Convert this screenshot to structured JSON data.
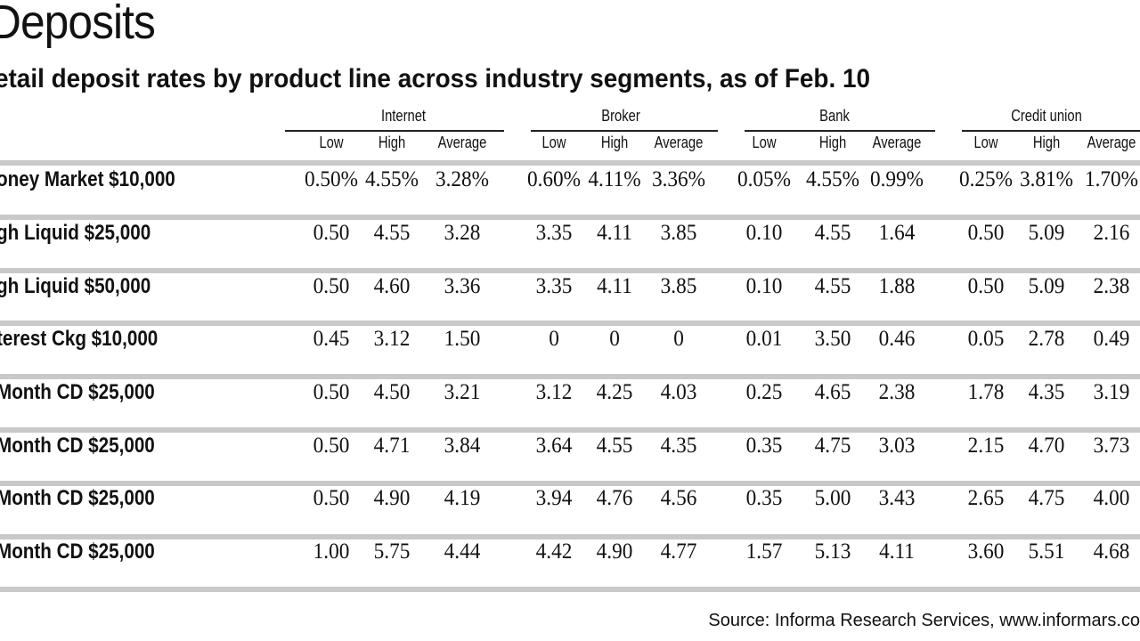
{
  "chart_data": {
    "type": "table",
    "title": "Deposits",
    "subtitle": "etail deposit rates by product line across industry segments, as of Feb. 10",
    "groups": [
      "Internet",
      "Broker",
      "Bank",
      "Credit union"
    ],
    "subheaders": [
      "Low",
      "High",
      "Average"
    ],
    "rows": [
      {
        "label": "oney Market $10,000",
        "values": [
          "0.50%",
          "4.55%",
          "3.28%",
          "0.60%",
          "4.11%",
          "3.36%",
          "0.05%",
          "4.55%",
          "0.99%",
          "0.25%",
          "3.81%",
          "1.70%"
        ]
      },
      {
        "label": "gh Liquid $25,000",
        "values": [
          "0.50",
          "4.55",
          "3.28",
          "3.35",
          "4.11",
          "3.85",
          "0.10",
          "4.55",
          "1.64",
          "0.50",
          "5.09",
          "2.16"
        ]
      },
      {
        "label": "gh Liquid $50,000",
        "values": [
          "0.50",
          "4.60",
          "3.36",
          "3.35",
          "4.11",
          "3.85",
          "0.10",
          "4.55",
          "1.88",
          "0.50",
          "5.09",
          "2.38"
        ]
      },
      {
        "label": "terest Ckg $10,000",
        "values": [
          "0.45",
          "3.12",
          "1.50",
          "0",
          "0",
          "0",
          "0.01",
          "3.50",
          "0.46",
          "0.05",
          "2.78",
          "0.49"
        ]
      },
      {
        "label": "Month CD $25,000",
        "values": [
          "0.50",
          "4.50",
          "3.21",
          "3.12",
          "4.25",
          "4.03",
          "0.25",
          "4.65",
          "2.38",
          "1.78",
          "4.35",
          "3.19"
        ]
      },
      {
        "label": "Month CD $25,000",
        "values": [
          "0.50",
          "4.71",
          "3.84",
          "3.64",
          "4.55",
          "4.35",
          "0.35",
          "4.75",
          "3.03",
          "2.15",
          "4.70",
          "3.73"
        ]
      },
      {
        "label": "Month CD $25,000",
        "values": [
          "0.50",
          "4.90",
          "4.19",
          "3.94",
          "4.76",
          "4.56",
          "0.35",
          "5.00",
          "3.43",
          "2.65",
          "4.75",
          "4.00"
        ]
      },
      {
        "label": "Month CD $25,000",
        "values": [
          "1.00",
          "5.75",
          "4.44",
          "4.42",
          "4.90",
          "4.77",
          "1.57",
          "5.13",
          "4.11",
          "3.60",
          "5.51",
          "4.68"
        ]
      }
    ],
    "source": "Source: Informa Research Services, www.informars.co"
  }
}
